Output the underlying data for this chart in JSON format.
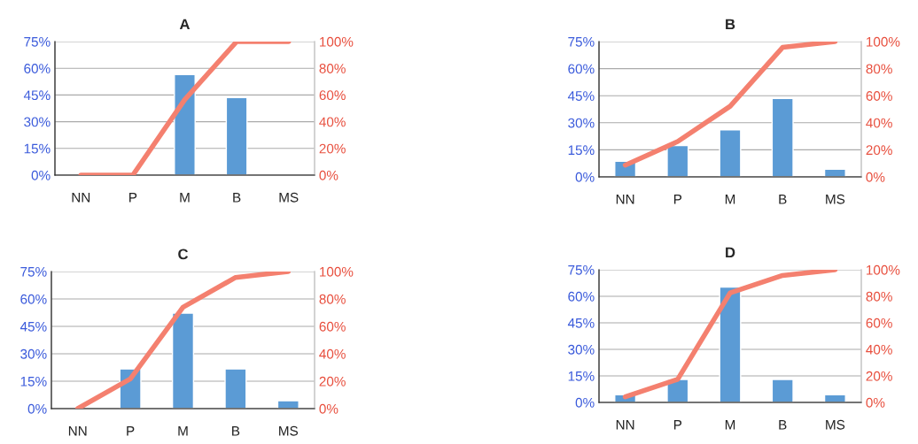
{
  "chart_data": [
    {
      "type": "bar",
      "title": "A",
      "categories": [
        "NN",
        "P",
        "M",
        "B",
        "MS"
      ],
      "series": [
        {
          "color": "#5b9bd5",
          "values": [
            null,
            null,
            56.5,
            43.5,
            null
          ]
        },
        {
          "type": "line",
          "axis": "y2",
          "color": "#f4806f",
          "values": [
            0,
            0,
            56.5,
            100,
            100
          ]
        }
      ],
      "ylim": [
        0,
        75
      ],
      "yticks": [
        {
          "value": 0,
          "label": "0%"
        },
        {
          "value": 15,
          "label": "15%"
        },
        {
          "value": 30,
          "label": "30%"
        },
        {
          "value": 45,
          "label": "45%"
        },
        {
          "value": 60,
          "label": "60%"
        },
        {
          "value": 75,
          "label": "75%"
        }
      ],
      "y2lim": [
        0,
        100
      ],
      "y2ticks": [
        {
          "value": 0,
          "label": "0%"
        },
        {
          "value": 20,
          "label": "20%"
        },
        {
          "value": 40,
          "label": "40%"
        },
        {
          "value": 60,
          "label": "60%"
        },
        {
          "value": 80,
          "label": "80%"
        },
        {
          "value": 100,
          "label": "100%"
        }
      ],
      "grid": "y",
      "marker": "none"
    },
    {
      "type": "bar",
      "title": "B",
      "categories": [
        "NN",
        "P",
        "M",
        "B",
        "MS"
      ],
      "series": [
        {
          "color": "#5b9bd5",
          "values": [
            8.7,
            17.4,
            26.1,
            43.5,
            4.3
          ]
        },
        {
          "type": "line",
          "axis": "y2",
          "color": "#f4806f",
          "values": [
            8.7,
            26.1,
            52.2,
            95.7,
            100
          ]
        }
      ],
      "ylim": [
        0,
        75
      ],
      "yticks": [
        {
          "value": 0,
          "label": "0%"
        },
        {
          "value": 15,
          "label": "15%"
        },
        {
          "value": 30,
          "label": "30%"
        },
        {
          "value": 45,
          "label": "45%"
        },
        {
          "value": 60,
          "label": "60%"
        },
        {
          "value": 75,
          "label": "75%"
        }
      ],
      "y2lim": [
        0,
        100
      ],
      "y2ticks": [
        {
          "value": 0,
          "label": "0%"
        },
        {
          "value": 20,
          "label": "20%"
        },
        {
          "value": 40,
          "label": "40%"
        },
        {
          "value": 60,
          "label": "60%"
        },
        {
          "value": 80,
          "label": "80%"
        },
        {
          "value": 100,
          "label": "100%"
        }
      ],
      "grid": "y",
      "marker": "none"
    },
    {
      "type": "bar",
      "title": "C",
      "categories": [
        "NN",
        "P",
        "M",
        "B",
        "MS"
      ],
      "series": [
        {
          "color": "#5b9bd5",
          "values": [
            null,
            21.7,
            52.2,
            21.7,
            4.3
          ]
        },
        {
          "type": "line",
          "axis": "y2",
          "color": "#f4806f",
          "values": [
            0,
            21.7,
            73.9,
            95.7,
            100
          ]
        }
      ],
      "ylim": [
        0,
        75
      ],
      "yticks": [
        {
          "value": 0,
          "label": "0%"
        },
        {
          "value": 15,
          "label": "15%"
        },
        {
          "value": 30,
          "label": "30%"
        },
        {
          "value": 45,
          "label": "45%"
        },
        {
          "value": 60,
          "label": "60%"
        },
        {
          "value": 75,
          "label": "75%"
        }
      ],
      "y2lim": [
        0,
        100
      ],
      "y2ticks": [
        {
          "value": 0,
          "label": "0%"
        },
        {
          "value": 20,
          "label": "20%"
        },
        {
          "value": 40,
          "label": "40%"
        },
        {
          "value": 60,
          "label": "60%"
        },
        {
          "value": 80,
          "label": "80%"
        },
        {
          "value": 100,
          "label": "100%"
        }
      ],
      "grid": "y",
      "marker": "none"
    },
    {
      "type": "bar",
      "title": "D",
      "categories": [
        "NN",
        "P",
        "M",
        "B",
        "MS"
      ],
      "series": [
        {
          "color": "#5b9bd5",
          "values": [
            4.3,
            13.0,
            65.2,
            13.0,
            4.3
          ]
        },
        {
          "type": "line",
          "axis": "y2",
          "color": "#f4806f",
          "values": [
            4.3,
            17.4,
            82.6,
            95.7,
            100
          ]
        }
      ],
      "ylim": [
        0,
        75
      ],
      "yticks": [
        {
          "value": 0,
          "label": "0%"
        },
        {
          "value": 15,
          "label": "15%"
        },
        {
          "value": 30,
          "label": "30%"
        },
        {
          "value": 45,
          "label": "45%"
        },
        {
          "value": 60,
          "label": "60%"
        },
        {
          "value": 75,
          "label": "75%"
        }
      ],
      "y2lim": [
        0,
        100
      ],
      "y2ticks": [
        {
          "value": 0,
          "label": "0%"
        },
        {
          "value": 20,
          "label": "20%"
        },
        {
          "value": 40,
          "label": "40%"
        },
        {
          "value": 60,
          "label": "60%"
        },
        {
          "value": 80,
          "label": "80%"
        },
        {
          "value": 100,
          "label": "100%"
        }
      ],
      "grid": "y",
      "marker": "none"
    }
  ]
}
